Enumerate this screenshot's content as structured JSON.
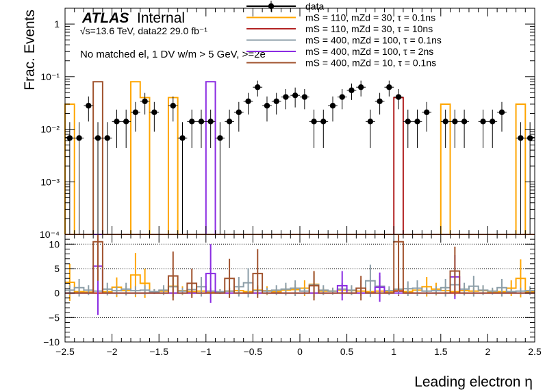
{
  "chart_data": [
    {
      "type": "histogram",
      "panel": "upper",
      "title": "",
      "ylabel": "Frac. Events",
      "yscale": "log",
      "ylim": [
        0.0001,
        2
      ],
      "xlim": [
        -2.5,
        2.5
      ],
      "bin_width": 0.1,
      "yticks": [
        "10⁻⁴",
        "10⁻³",
        "10⁻²",
        "10⁻¹",
        "1"
      ],
      "ytick_values": [
        0.0001,
        0.001,
        0.01,
        0.1,
        1
      ],
      "labels": {
        "atlas": "ATLAS",
        "internal": "Internal",
        "energy": "√s=13.6 TeV, data22 29.0 fb⁻¹",
        "selection": "No matched el, 1 DV w/m > 5 GeV, >=2e"
      },
      "legend": [
        {
          "label": "data",
          "color": "#000000",
          "style": "marker"
        },
        {
          "label": "mS = 110, mZd = 30, τ = 0.1ns",
          "color": "#ffa500",
          "style": "line"
        },
        {
          "label": "mS = 110, mZd = 30, τ = 10ns",
          "color": "#b22222",
          "style": "line"
        },
        {
          "label": "mS = 400, mZd = 100, τ = 0.1ns",
          "color": "#8c9ea8",
          "style": "line"
        },
        {
          "label": "mS = 400, mZd = 100, τ = 2ns",
          "color": "#8a2be2",
          "style": "line"
        },
        {
          "label": "mS = 400, mZd = 10, τ = 0.1ns",
          "color": "#a0522d",
          "style": "line"
        }
      ],
      "data_points": {
        "x": [
          -2.45,
          -2.35,
          -2.25,
          -2.15,
          -2.05,
          -1.95,
          -1.85,
          -1.75,
          -1.65,
          -1.55,
          -1.45,
          -1.35,
          -1.25,
          -1.15,
          -1.05,
          -0.95,
          -0.85,
          -0.75,
          -0.65,
          -0.55,
          -0.45,
          -0.35,
          -0.25,
          -0.15,
          -0.05,
          0.05,
          0.15,
          0.25,
          0.35,
          0.45,
          0.55,
          0.65,
          0.75,
          0.85,
          0.95,
          1.05,
          1.15,
          1.25,
          1.35,
          1.45,
          1.55,
          1.65,
          1.75,
          1.85,
          1.95,
          2.05,
          2.15,
          2.25,
          2.35,
          2.45
        ],
        "y": [
          0.0068,
          0.0068,
          0.028,
          0.0068,
          0.0068,
          0.014,
          0.014,
          0.021,
          0.034,
          0.021,
          0.0001,
          0.028,
          0.0068,
          0.014,
          0.014,
          0.014,
          0.0068,
          0.014,
          0.021,
          0.034,
          0.063,
          0.028,
          0.034,
          0.041,
          0.044,
          0.041,
          0.014,
          0.014,
          0.028,
          0.041,
          0.055,
          0.063,
          0.014,
          0.034,
          0.063,
          0.041,
          0.014,
          0.014,
          0.021,
          0.0001,
          0.014,
          0.014,
          0.014,
          0.0001,
          0.014,
          0.014,
          0.021,
          0.0001,
          0.0068,
          0.0068
        ],
        "yerr": [
          0.0068,
          0.0068,
          0.014,
          0.0068,
          0.0068,
          0.0096,
          0.0096,
          0.012,
          0.015,
          0.012,
          0,
          0.014,
          0.0068,
          0.0096,
          0.0096,
          0.0096,
          0.0068,
          0.0096,
          0.012,
          0.015,
          0.021,
          0.014,
          0.015,
          0.017,
          0.018,
          0.017,
          0.0096,
          0.0096,
          0.014,
          0.017,
          0.019,
          0.021,
          0.0096,
          0.015,
          0.021,
          0.017,
          0.0096,
          0.0096,
          0.012,
          0,
          0.0096,
          0.0096,
          0.0096,
          0,
          0.0096,
          0.0096,
          0.012,
          0,
          0.0068,
          0.0068
        ]
      },
      "series": [
        {
          "name": "mS = 110, mZd = 30, τ = 0.1ns",
          "color": "#ffa500",
          "values": [
            0.03,
            0.0001,
            0.0001,
            0.0001,
            0.0001,
            0.0001,
            0.0001,
            0.08,
            0.04,
            0.0001,
            0.0001,
            0.04,
            0.0001,
            0.0001,
            0.0001,
            0.0001,
            0.0001,
            0.0001,
            0.0001,
            0.0001,
            0.0001,
            0.0001,
            0.0001,
            0.0001,
            0.0001,
            0.0001,
            0.0001,
            0.0001,
            0.0001,
            0.0001,
            0.0001,
            0.0001,
            0.0001,
            0.0001,
            0.0001,
            0.0001,
            0.0001,
            0.0001,
            0.0001,
            0.0001,
            0.03,
            0.0001,
            0.0001,
            0.0001,
            0.0001,
            0.0001,
            0.0001,
            0.0001,
            0.03,
            0.0001
          ]
        },
        {
          "name": "mS = 110, mZd = 30, τ = 10ns",
          "color": "#b22222",
          "values": [
            0.0001,
            0.0001,
            0.0001,
            0.0001,
            0.0001,
            0.0001,
            0.0001,
            0.0001,
            0.0001,
            0.0001,
            0.0001,
            0.0001,
            0.0001,
            0.0001,
            0.0001,
            0.0001,
            0.0001,
            0.0001,
            0.0001,
            0.0001,
            0.0001,
            0.0001,
            0.0001,
            0.0001,
            0.0001,
            0.0001,
            0.0001,
            0.0001,
            0.0001,
            0.0001,
            0.0001,
            0.0001,
            0.0001,
            0.0001,
            0.0001,
            0.04,
            0.0001,
            0.0001,
            0.0001,
            0.0001,
            0.0001,
            0.0001,
            0.0001,
            0.0001,
            0.0001,
            0.0001,
            0.0001,
            0.0001,
            0.0001,
            0.0001
          ]
        },
        {
          "name": "mS = 400, mZd = 100, τ = 0.1ns",
          "color": "#8c9ea8",
          "values": [
            0.0001,
            0.0001,
            0.0001,
            0.0001,
            0.0001,
            0.0001,
            0.0001,
            0.0001,
            0.0001,
            0.0001,
            0.0001,
            0.0001,
            0.0001,
            0.0001,
            0.0001,
            0.0001,
            0.0001,
            0.0001,
            0.0001,
            0.0001,
            0.0001,
            0.0001,
            0.0001,
            0.0001,
            0.0001,
            0.0001,
            0.0001,
            0.0001,
            0.0001,
            0.0001,
            0.0001,
            0.0001,
            0.0001,
            0.0001,
            0.0001,
            0.0001,
            0.0001,
            0.0001,
            0.0001,
            0.0001,
            0.0001,
            0.0001,
            0.0001,
            0.0001,
            0.0001,
            0.0001,
            0.0001,
            0.0001,
            0.0001,
            0.0001
          ]
        },
        {
          "name": "mS = 400, mZd = 100, τ = 2ns",
          "color": "#8a2be2",
          "values": [
            0.0001,
            0.0001,
            0.0001,
            0.0001,
            0.0001,
            0.0001,
            0.0001,
            0.0001,
            0.0001,
            0.0001,
            0.0001,
            0.0001,
            0.0001,
            0.0001,
            0.0001,
            0.08,
            0.0001,
            0.0001,
            0.0001,
            0.0001,
            0.0001,
            0.0001,
            0.0001,
            0.0001,
            0.0001,
            0.0001,
            0.0001,
            0.0001,
            0.0001,
            0.0001,
            0.0001,
            0.0001,
            0.0001,
            0.0001,
            0.0001,
            0.0001,
            0.0001,
            0.0001,
            0.0001,
            0.0001,
            0.0001,
            0.0001,
            0.0001,
            0.0001,
            0.0001,
            0.0001,
            0.0001,
            0.0001,
            0.0001,
            0.0001
          ]
        },
        {
          "name": "mS = 400, mZd = 10, τ = 0.1ns",
          "color": "#a0522d",
          "values": [
            0.0001,
            0.0001,
            0.0001,
            0.08,
            0.0001,
            0.0001,
            0.0001,
            0.0001,
            0.0001,
            0.0001,
            0.0001,
            0.0001,
            0.0001,
            0.0001,
            0.0001,
            0.0001,
            0.0001,
            0.0001,
            0.0001,
            0.0001,
            0.0001,
            0.0001,
            0.0001,
            0.0001,
            0.0001,
            0.0001,
            0.0001,
            0.0001,
            0.0001,
            0.0001,
            0.0001,
            0.0001,
            0.0001,
            0.0001,
            0.0001,
            0.0001,
            0.0001,
            0.0001,
            0.0001,
            0.0001,
            0.0001,
            0.0001,
            0.0001,
            0.0001,
            0.0001,
            0.0001,
            0.0001,
            0.0001,
            0.0001,
            0.0001
          ]
        }
      ]
    },
    {
      "type": "histogram",
      "panel": "lower",
      "title": "",
      "xlabel": "Leading electron η",
      "ylabel": "",
      "ylim": [
        -10,
        12
      ],
      "xlim": [
        -2.5,
        2.5
      ],
      "xticks": [
        "−2.5",
        "−2",
        "−1.5",
        "−1",
        "−0.5",
        "0",
        "0.5",
        "1",
        "1.5",
        "2",
        "2.5"
      ],
      "xtick_values": [
        -2.5,
        -2,
        -1.5,
        -1,
        -0.5,
        0,
        0.5,
        1,
        1.5,
        2,
        2.5
      ],
      "yticks": [
        "−10",
        "−5",
        "0",
        "5",
        "10"
      ],
      "ytick_values": [
        -10,
        -5,
        0,
        5,
        10
      ],
      "dotted_lines": [
        -5,
        5,
        10
      ],
      "series": [
        {
          "name": "mS = 110, mZd = 30, τ = 0.1ns",
          "color": "#ffa500",
          "values": [
            2.2,
            0.3,
            0.2,
            0,
            0.3,
            1.2,
            0.5,
            3.7,
            2.0,
            0.3,
            0.4,
            1.4,
            0.5,
            0.3,
            0.4,
            0.3,
            0.3,
            0.4,
            0.5,
            0.3,
            0.6,
            0.5,
            0.3,
            0.6,
            0.7,
            1.0,
            1.8,
            0.4,
            0.4,
            0.6,
            0.5,
            0.4,
            0.3,
            0.4,
            0.3,
            0.7,
            0.3,
            0.6,
            1.3,
            0.8,
            0.5,
            0.3,
            0.5,
            0.4,
            0.5,
            0.3,
            0.3,
            1.0,
            3.0,
            0.3
          ],
          "errors": [
            3.8,
            0.5,
            0.4,
            0.2,
            0.5,
            2.0,
            0.9,
            4.5,
            3.0,
            0.5,
            0.7,
            2.2,
            0.9,
            0.5,
            0.7,
            0.5,
            0.5,
            0.7,
            0.9,
            0.5,
            1.0,
            0.9,
            0.5,
            1.0,
            1.2,
            1.6,
            2.7,
            0.7,
            0.7,
            1.0,
            0.9,
            0.7,
            0.5,
            0.7,
            0.5,
            1.2,
            0.5,
            1.0,
            2.0,
            1.3,
            0.9,
            0.5,
            0.9,
            0.7,
            0.9,
            0.5,
            0.5,
            1.6,
            3.9,
            0.5
          ]
        },
        {
          "name": "mS = 110, mZd = 30, τ = 10ns",
          "color": "#b22222",
          "values": [
            0,
            0,
            0,
            0,
            0,
            0,
            0,
            0,
            0,
            0,
            0,
            0,
            0,
            0,
            0,
            0,
            0,
            0,
            0,
            0,
            0,
            0,
            0,
            0,
            0,
            0,
            0,
            0,
            0,
            0,
            0,
            0,
            0,
            0,
            0,
            0.4,
            0,
            0,
            0,
            0,
            0,
            0,
            0,
            0,
            0,
            0,
            0,
            0,
            0,
            0
          ],
          "errors": [
            0,
            0,
            0,
            0,
            0,
            0,
            0,
            0,
            0,
            0,
            0,
            0,
            0,
            0,
            0,
            0,
            0,
            0,
            0,
            0,
            0,
            0,
            0,
            0,
            0,
            0,
            0,
            0,
            0,
            0,
            0,
            0,
            0,
            0,
            0,
            1.0,
            0,
            0,
            0,
            0,
            0,
            0,
            0,
            0,
            0,
            0,
            0,
            0,
            0,
            0
          ]
        },
        {
          "name": "mS = 400, mZd = 100, τ = 0.1ns",
          "color": "#8c9ea8",
          "values": [
            0.6,
            1.1,
            0.6,
            0.4,
            0.8,
            0.5,
            0.8,
            0.5,
            0.6,
            0.3,
            0.6,
            1.3,
            0.4,
            0.7,
            1.3,
            0.4,
            0.3,
            0.4,
            1.3,
            2.1,
            0.5,
            0.4,
            0.6,
            0.8,
            1.0,
            0.4,
            1.7,
            0.6,
            0.4,
            0.8,
            0.6,
            1.0,
            2.5,
            1.4,
            0.5,
            0.8,
            0.9,
            1.0,
            0.4,
            0.5,
            1.1,
            1.7,
            0.8,
            1.4,
            0.6,
            0.4,
            1.1,
            0.3,
            0.4,
            0.5
          ],
          "errors": [
            1.0,
            1.8,
            1.0,
            0.7,
            1.3,
            0.9,
            1.3,
            0.9,
            1.0,
            0.5,
            1.0,
            2.0,
            0.7,
            1.2,
            2.0,
            0.7,
            0.5,
            0.7,
            2.0,
            3.0,
            0.9,
            0.7,
            1.0,
            1.3,
            1.6,
            0.7,
            2.5,
            1.0,
            0.7,
            1.3,
            1.0,
            1.6,
            3.3,
            2.1,
            0.9,
            1.3,
            1.5,
            1.6,
            0.7,
            0.9,
            1.8,
            2.5,
            1.3,
            2.1,
            1.0,
            0.7,
            1.8,
            0.5,
            0.7,
            0.9
          ]
        },
        {
          "name": "mS = 400, mZd = 100, τ = 2ns",
          "color": "#8a2be2",
          "values": [
            0,
            0,
            0,
            5.5,
            0,
            0,
            0,
            0,
            0,
            0,
            0,
            0,
            0,
            0,
            0,
            4.0,
            0,
            0,
            0,
            0,
            0,
            0,
            0,
            0,
            0,
            0,
            0,
            0,
            0,
            1.5,
            0,
            0,
            0,
            1.2,
            0,
            0,
            0,
            0,
            0,
            0,
            0,
            3.3,
            0,
            0,
            0,
            0,
            0,
            0,
            0,
            0
          ],
          "errors": [
            0,
            0,
            0,
            10.0,
            0,
            0,
            0,
            0,
            0,
            0,
            0,
            0,
            0,
            0,
            0,
            6.0,
            0,
            0,
            0,
            0,
            0,
            0,
            0,
            0,
            0,
            0,
            0,
            0,
            0,
            3.0,
            0,
            0,
            0,
            3.0,
            0,
            0,
            0,
            0,
            0,
            0,
            0,
            4.5,
            0,
            0,
            0,
            0,
            0,
            0,
            0,
            0
          ]
        },
        {
          "name": "mS = 400, mZd = 10, τ = 0.1ns",
          "color": "#a0522d",
          "values": [
            0,
            0,
            0,
            10.5,
            0,
            0,
            0,
            0,
            0,
            0,
            0,
            3.5,
            0,
            2.0,
            0,
            0,
            0,
            3.0,
            0,
            0,
            4.0,
            0,
            0,
            0,
            0,
            0,
            1.5,
            0,
            0,
            0,
            0,
            1.0,
            0,
            0,
            0,
            10.5,
            0,
            0,
            0,
            0,
            0,
            4.5,
            0,
            0,
            0,
            0,
            0,
            0,
            0,
            0
          ],
          "errors": [
            0,
            0,
            0,
            8.0,
            0,
            0,
            0,
            0,
            0,
            0,
            0,
            5.0,
            0,
            3.0,
            0,
            0,
            0,
            4.0,
            0,
            0,
            5.0,
            0,
            0,
            0,
            0,
            0,
            3.0,
            0,
            0,
            0,
            0,
            2.5,
            0,
            0,
            0,
            10.0,
            0,
            0,
            0,
            0,
            0,
            5.0,
            0,
            0,
            0,
            0,
            0,
            0,
            0,
            0
          ]
        }
      ]
    }
  ]
}
